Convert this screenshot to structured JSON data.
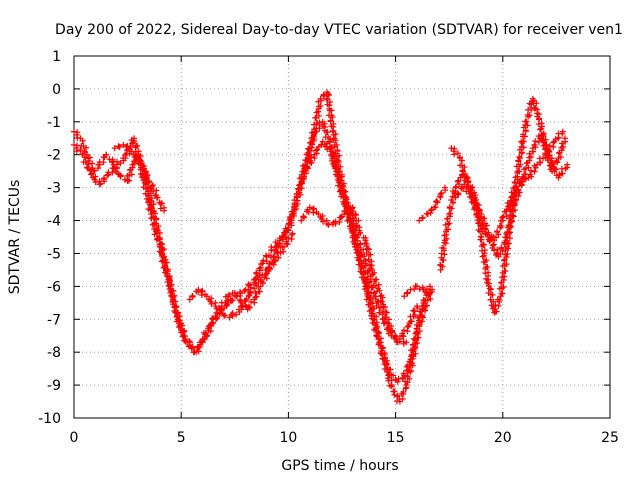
{
  "chart_data": {
    "type": "scatter",
    "title": "Day 200 of 2022, Sidereal Day-to-day VTEC variation (SDTVAR) for receiver ven1",
    "xlabel": "GPS time / hours",
    "ylabel": "SDTVAR / TECUs",
    "xlim": [
      0,
      25
    ],
    "ylim": [
      -10,
      1
    ],
    "xticks": [
      0,
      5,
      10,
      15,
      20,
      25
    ],
    "yticks": [
      -10,
      -9,
      -8,
      -7,
      -6,
      -5,
      -4,
      -3,
      -2,
      -1,
      0,
      1
    ],
    "xtick_labels": [
      "0",
      "5",
      "10",
      "15",
      "20",
      "25"
    ],
    "ytick_labels": [
      "-10",
      "-9",
      "-8",
      "-7",
      "-6",
      "-5",
      "-4",
      "-3",
      "-2",
      "-1",
      "0",
      "1"
    ],
    "grid": true,
    "marker": "+",
    "color": "#ff0000",
    "series": [
      {
        "name": "track-1",
        "x": [
          0.0,
          0.3,
          0.6,
          0.9,
          1.2,
          1.5,
          1.8,
          2.1,
          2.5,
          2.8,
          3.0,
          3.3,
          3.6,
          3.9,
          4.2,
          4.5,
          4.8,
          5.1,
          5.4,
          5.7,
          6.0,
          6.3,
          6.6,
          6.9,
          7.2,
          7.5,
          7.8,
          8.1,
          8.4,
          8.7,
          9.0,
          9.3,
          9.6,
          9.9,
          10.1,
          10.4,
          10.7,
          11.0,
          11.3,
          11.6,
          11.9,
          12.2,
          12.5,
          12.8,
          13.1,
          13.4,
          13.7,
          14.0,
          14.3,
          14.6,
          14.9,
          15.2,
          15.5,
          15.8,
          16.1,
          16.4,
          16.7
        ],
        "y": [
          -1.3,
          -1.5,
          -2.0,
          -2.5,
          -2.3,
          -2.0,
          -2.2,
          -2.6,
          -2.8,
          -2.2,
          -2.0,
          -2.5,
          -3.4,
          -4.3,
          -5.1,
          -6.0,
          -6.9,
          -7.5,
          -7.8,
          -8.0,
          -7.6,
          -7.2,
          -6.9,
          -6.6,
          -6.3,
          -6.2,
          -6.5,
          -6.7,
          -6.4,
          -6.0,
          -5.6,
          -5.1,
          -4.7,
          -4.3,
          -4.0,
          -3.3,
          -2.5,
          -1.8,
          -1.2,
          -1.0,
          -1.6,
          -2.4,
          -3.2,
          -3.9,
          -4.6,
          -5.3,
          -6.0,
          -6.9,
          -7.8,
          -8.6,
          -9.2,
          -9.5,
          -9.0,
          -8.2,
          -7.2,
          -6.6,
          -6.1
        ]
      },
      {
        "name": "track-2",
        "x": [
          0.0,
          0.4,
          0.8,
          1.2,
          1.6,
          2.0,
          2.4,
          2.8,
          3.2,
          3.6,
          4.0,
          4.4,
          4.8,
          5.2,
          5.6,
          6.0,
          6.4,
          6.8,
          7.2,
          7.6,
          8.0,
          8.4,
          8.8,
          9.2,
          9.6,
          10.0,
          10.4,
          10.8,
          11.2,
          11.5,
          11.8,
          12.1,
          12.4,
          12.7,
          13.0,
          13.3,
          13.6,
          13.9,
          14.2,
          14.5,
          14.8,
          15.1,
          15.4,
          15.7,
          16.0,
          16.3,
          16.6
        ],
        "y": [
          -1.7,
          -2.0,
          -2.6,
          -2.9,
          -2.6,
          -2.3,
          -2.1,
          -1.5,
          -2.6,
          -3.8,
          -4.8,
          -5.8,
          -6.8,
          -7.6,
          -8.0,
          -7.7,
          -7.2,
          -6.8,
          -6.5,
          -6.3,
          -6.1,
          -5.8,
          -5.3,
          -4.9,
          -4.6,
          -4.3,
          -3.4,
          -2.4,
          -1.3,
          -0.3,
          -0.1,
          -1.3,
          -2.5,
          -3.5,
          -4.3,
          -5.2,
          -6.0,
          -6.9,
          -7.6,
          -8.2,
          -8.7,
          -8.9,
          -8.7,
          -8.3,
          -7.3,
          -6.5,
          -6.0
        ]
      },
      {
        "name": "track-3",
        "x": [
          1.9,
          2.3,
          2.7,
          3.1,
          3.5,
          3.9,
          4.2
        ],
        "y": [
          -1.8,
          -1.7,
          -1.9,
          -2.3,
          -2.8,
          -3.3,
          -3.7
        ]
      },
      {
        "name": "track-4",
        "x": [
          5.4,
          5.8,
          6.2,
          6.6,
          7.0,
          7.4,
          7.8,
          8.2,
          8.6,
          9.0,
          9.4,
          9.8,
          10.2
        ],
        "y": [
          -6.4,
          -6.1,
          -6.3,
          -6.6,
          -6.9,
          -6.9,
          -6.7,
          -6.2,
          -5.8,
          -5.5,
          -5.2,
          -4.8,
          -4.4
        ]
      },
      {
        "name": "track-5",
        "x": [
          10.6,
          11.0,
          11.4,
          11.8,
          12.2,
          12.6,
          13.0,
          13.3,
          13.6,
          13.9,
          14.3,
          14.7,
          15.1,
          15.5
        ],
        "y": [
          -4.0,
          -3.6,
          -3.8,
          -4.1,
          -4.1,
          -3.8,
          -3.6,
          -4.3,
          -4.6,
          -5.5,
          -6.3,
          -7.2,
          -7.7,
          -7.7
        ]
      },
      {
        "name": "track-6",
        "x": [
          10.8,
          11.2,
          11.6,
          12.0,
          12.4,
          12.8,
          13.2,
          13.6,
          14.0,
          14.4,
          14.8,
          15.2,
          15.6,
          16.0
        ],
        "y": [
          -2.5,
          -2.0,
          -1.6,
          -1.9,
          -2.8,
          -3.6,
          -4.5,
          -5.3,
          -6.2,
          -7.0,
          -7.5,
          -7.6,
          -7.2,
          -6.6
        ]
      },
      {
        "name": "track-7",
        "x": [
          15.4,
          15.7,
          16.0,
          16.3,
          16.6
        ],
        "y": [
          -6.3,
          -6.1,
          -6.0,
          -6.1,
          -6.2
        ]
      },
      {
        "name": "track-8",
        "x": [
          16.1,
          16.5,
          16.8,
          17.1,
          17.3
        ],
        "y": [
          -4.0,
          -3.8,
          -3.6,
          -3.2,
          -3.0
        ]
      },
      {
        "name": "track-9",
        "x": [
          17.1,
          17.3,
          17.5,
          17.8,
          18.1,
          18.4,
          18.7,
          19.0,
          19.3,
          19.6,
          19.9,
          20.2,
          20.5,
          20.8,
          21.1,
          21.4,
          21.7,
          22.0,
          22.3,
          22.6,
          22.9
        ],
        "y": [
          -5.5,
          -4.6,
          -3.8,
          -3.0,
          -2.6,
          -2.8,
          -3.3,
          -4.5,
          -5.8,
          -6.8,
          -6.3,
          -4.8,
          -3.3,
          -2.1,
          -1.0,
          -0.3,
          -0.9,
          -1.8,
          -2.5,
          -2.1,
          -1.5
        ]
      },
      {
        "name": "track-10",
        "x": [
          17.8,
          18.2,
          18.6,
          19.0,
          19.4,
          19.8,
          20.2,
          20.6,
          21.0,
          21.4,
          21.8,
          22.2,
          22.6,
          23.0
        ],
        "y": [
          -3.3,
          -2.9,
          -3.3,
          -3.8,
          -4.6,
          -5.1,
          -4.5,
          -3.4,
          -2.6,
          -1.8,
          -1.4,
          -2.1,
          -2.7,
          -2.3
        ]
      },
      {
        "name": "track-11",
        "x": [
          17.6,
          18.0,
          18.4,
          18.8,
          19.2,
          19.6,
          20.0,
          20.4,
          20.8,
          21.2,
          21.6,
          22.0,
          22.4,
          22.8
        ],
        "y": [
          -1.8,
          -2.1,
          -3.0,
          -3.8,
          -4.4,
          -4.6,
          -4.0,
          -3.3,
          -2.8,
          -2.7,
          -2.3,
          -2.0,
          -1.6,
          -1.3
        ]
      }
    ]
  }
}
